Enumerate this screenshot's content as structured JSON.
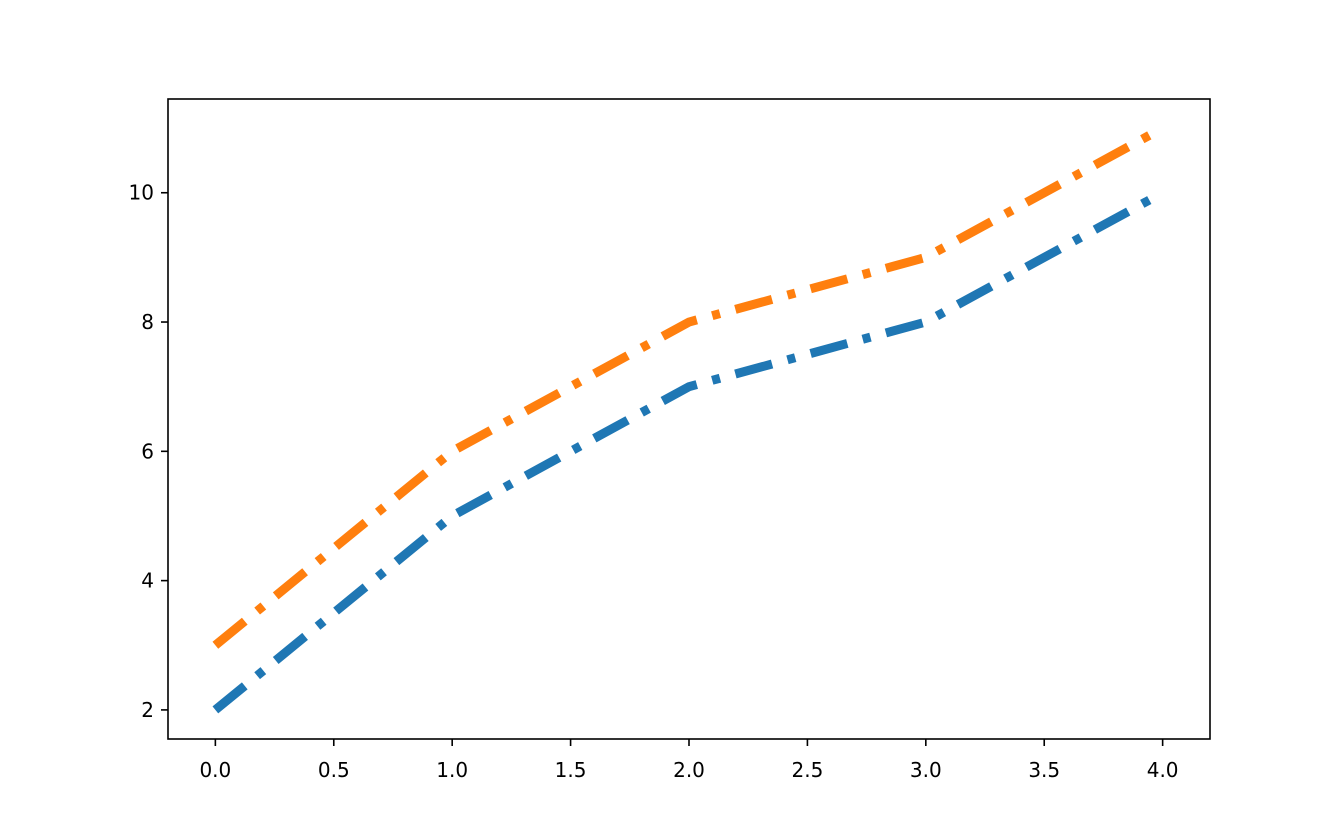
{
  "chart_data": {
    "type": "line",
    "title": "",
    "xlabel": "",
    "ylabel": "",
    "x": [
      0,
      1,
      2,
      3,
      4
    ],
    "series": [
      {
        "values": [
          2,
          5,
          7,
          8,
          10
        ],
        "color": "#1f77b4",
        "linestyle": "dashdot"
      },
      {
        "values": [
          3,
          6,
          8,
          9,
          11
        ],
        "color": "#ff7f0e",
        "linestyle": "dashdot"
      }
    ],
    "xlim": [
      -0.2,
      4.2
    ],
    "ylim": [
      1.55,
      11.45
    ],
    "xticks": [
      0,
      0.5,
      1,
      1.5,
      2,
      2.5,
      3,
      3.5,
      4
    ],
    "xtick_labels": [
      "0.0",
      "0.5",
      "1.0",
      "1.5",
      "2.0",
      "2.5",
      "3.0",
      "3.5",
      "4.0"
    ],
    "yticks": [
      2,
      4,
      6,
      8,
      10
    ],
    "ytick_labels": [
      "2",
      "4",
      "6",
      "8",
      "10"
    ],
    "grid": false,
    "legend": "none"
  }
}
